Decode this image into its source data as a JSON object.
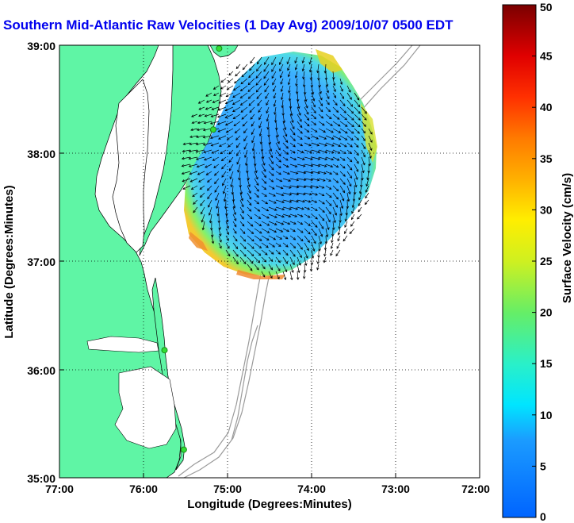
{
  "title": "Southern Mid-Atlantic Raw Velocities (1 Day Avg) 2009/10/07 0500 EDT",
  "map": {
    "xlabel": "Longitude (Degrees:Minutes)",
    "ylabel": "Latitude (Degrees:Minutes)",
    "lon_range": [
      -77,
      -72
    ],
    "lat_range": [
      35,
      39
    ],
    "lon_ticks": [
      "77:00",
      "76:00",
      "75:00",
      "74:00",
      "73:00",
      "72:00"
    ],
    "lat_ticks": [
      "39:00",
      "38:00",
      "37:00",
      "36:00",
      "35:00"
    ],
    "grid": "dotted",
    "land_color": "#5ff5a5",
    "water_color": "#ffffff",
    "coast_color": "#000000",
    "bathymetry_color": "#9a9a9a",
    "site_color": "#33dd33",
    "sites": [
      {
        "lon": -75.1,
        "lat": 38.97
      },
      {
        "lon": -75.17,
        "lat": 38.22
      },
      {
        "lon": -75.75,
        "lat": 36.18
      },
      {
        "lon": -75.52,
        "lat": 35.26
      }
    ]
  },
  "colorbar": {
    "label": "Surface Velocity (cm/s)",
    "range": [
      0,
      50
    ],
    "ticks": [
      "0",
      "5",
      "10",
      "15",
      "20",
      "25",
      "30",
      "35",
      "40",
      "45",
      "50"
    ],
    "colormap": "jet"
  }
}
